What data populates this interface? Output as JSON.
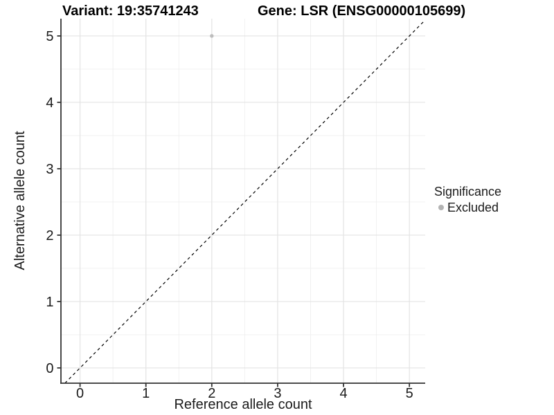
{
  "chart_data": {
    "type": "scatter",
    "title_left": "Variant: 19:35741243",
    "title_right": "Gene: LSR (ENSG00000105699)",
    "xlabel": "Reference allele count",
    "ylabel": "Alternative allele count",
    "x_ticks": [
      0,
      1,
      2,
      3,
      4,
      5
    ],
    "y_ticks": [
      0,
      1,
      2,
      3,
      4,
      5
    ],
    "x_minor_ticks": [
      0.5,
      1.5,
      2.5,
      3.5,
      4.5
    ],
    "y_minor_ticks": [
      0.5,
      1.5,
      2.5,
      3.5,
      4.5
    ],
    "xlim": [
      -0.29,
      5.24
    ],
    "ylim": [
      -0.23,
      5.26
    ],
    "grid": "major+minor",
    "reference_line": {
      "type": "identity",
      "slope": 1,
      "intercept": 0,
      "style": "dashed",
      "color": "#000000"
    },
    "series": [
      {
        "name": "Excluded",
        "color": "#bdbdbd",
        "points": [
          {
            "x": 2,
            "y": 5
          }
        ]
      }
    ],
    "legend": {
      "title": "Significance",
      "position": "right",
      "entries": [
        {
          "label": "Excluded",
          "color": "#b3b3b3"
        }
      ]
    },
    "colors": {
      "grid_major": "#e3e3e3",
      "grid_minor": "#efefef",
      "axis": "#333333",
      "text": "#1a1a1a"
    }
  }
}
